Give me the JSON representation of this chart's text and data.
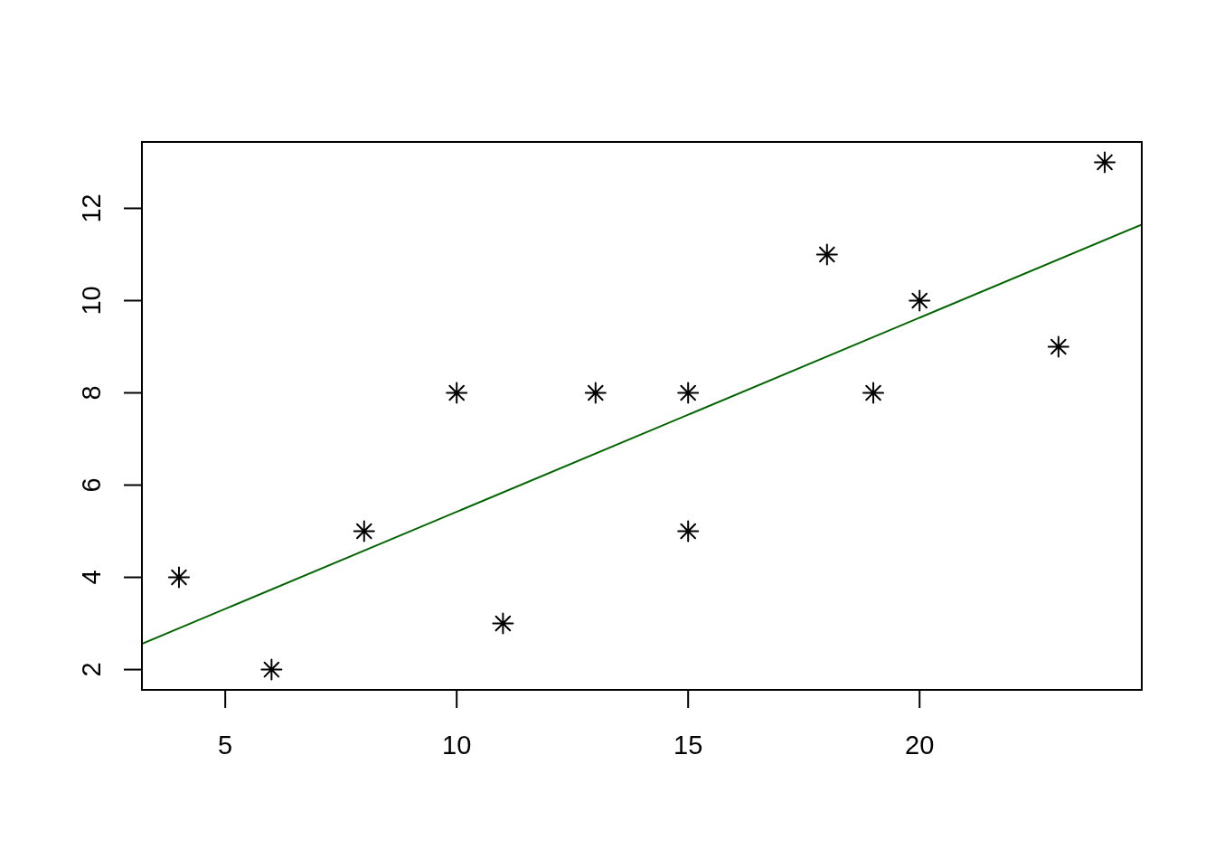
{
  "chart_data": {
    "type": "scatter",
    "series": [
      {
        "color": "#000000",
        "marker": "cross",
        "x": [
          4,
          6,
          8,
          10,
          11,
          13,
          15,
          15,
          18,
          19,
          20,
          23,
          24
        ],
        "values": [
          4,
          2,
          5,
          8,
          3,
          8,
          8,
          5,
          11,
          8,
          10,
          9,
          13
        ]
      },
      {
        "type": "line",
        "color": "#006400",
        "marker": "none",
        "x": [
          3.2,
          24.8
        ],
        "values": [
          2.56,
          11.65
        ]
      }
    ],
    "xlim": [
      3.2,
      24.8
    ],
    "ylim": [
      1.56,
      13.44
    ],
    "xticks": [
      5,
      10,
      15,
      20
    ],
    "yticks": [
      2,
      4,
      6,
      8,
      10,
      12
    ]
  }
}
